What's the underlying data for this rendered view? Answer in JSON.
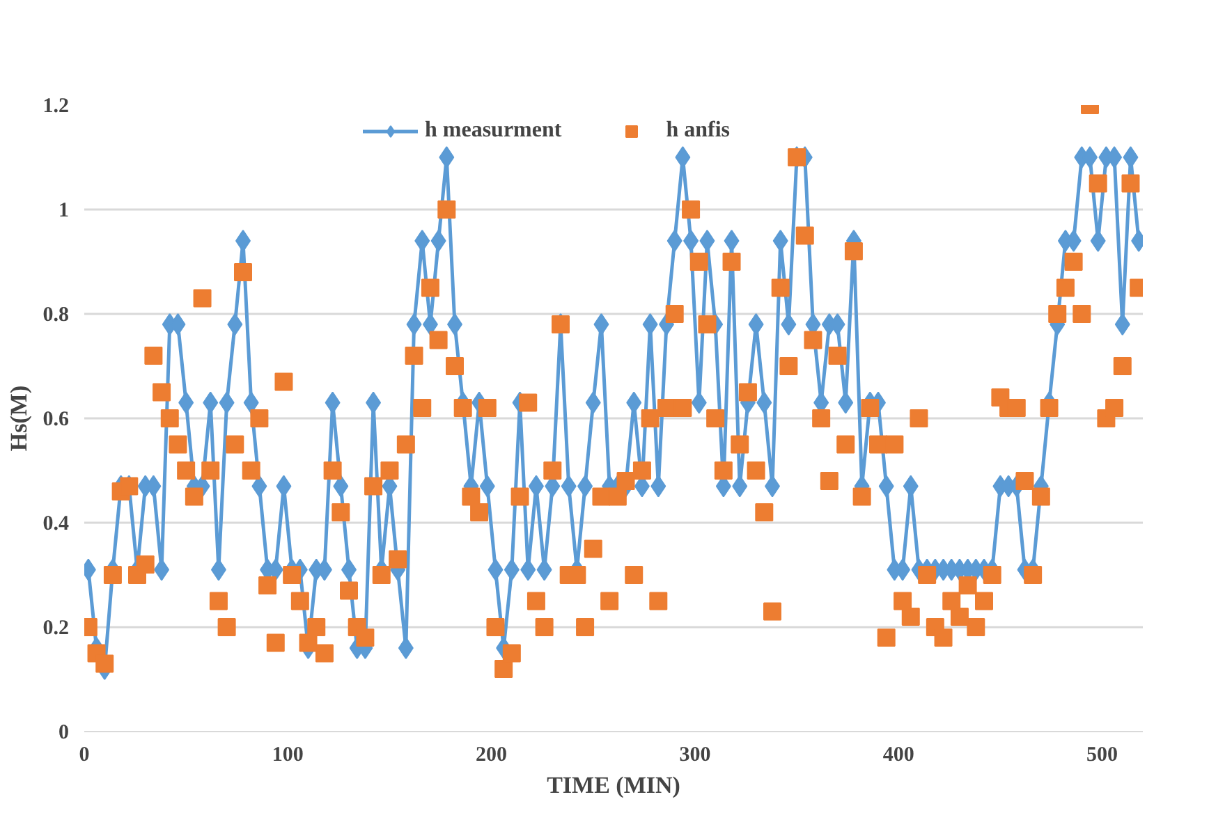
{
  "chart_data": {
    "type": "line",
    "xlabel": "TIME (MIN)",
    "ylabel": "Hs(M)",
    "x": [
      2,
      6,
      10,
      14,
      18,
      22,
      26,
      30,
      34,
      38,
      42,
      46,
      50,
      54,
      58,
      62,
      66,
      70,
      74,
      78,
      82,
      86,
      90,
      94,
      98,
      102,
      106,
      110,
      114,
      118,
      122,
      126,
      130,
      134,
      138,
      142,
      146,
      150,
      154,
      158,
      162,
      166,
      170,
      174,
      178,
      182,
      186,
      190,
      194,
      198,
      202,
      206,
      210,
      214,
      218,
      222,
      226,
      230,
      234,
      238,
      242,
      246,
      250,
      254,
      258,
      262,
      266,
      270,
      274,
      278,
      282,
      286,
      290,
      294,
      298,
      302,
      306,
      310,
      314,
      318,
      322,
      326,
      330,
      334,
      338,
      342,
      346,
      350,
      354,
      358,
      362,
      366,
      370,
      374,
      378,
      382,
      386,
      390,
      394,
      398,
      402,
      406,
      410,
      414,
      418,
      422,
      426,
      430,
      434,
      438,
      442,
      446,
      450,
      454,
      458,
      462,
      466,
      470,
      474,
      478,
      482,
      486,
      490,
      494,
      498,
      502,
      506,
      510,
      514,
      518
    ],
    "series": [
      {
        "name": "h measurment",
        "marker": "diamond",
        "color": "#5b9bd5",
        "values": [
          0.31,
          0.16,
          0.12,
          0.31,
          0.47,
          0.47,
          0.31,
          0.47,
          0.47,
          0.31,
          0.78,
          0.78,
          0.63,
          0.47,
          0.47,
          0.63,
          0.31,
          0.63,
          0.78,
          0.94,
          0.63,
          0.47,
          0.31,
          0.31,
          0.47,
          0.31,
          0.31,
          0.16,
          0.31,
          0.31,
          0.63,
          0.47,
          0.31,
          0.16,
          0.16,
          0.63,
          0.31,
          0.47,
          0.31,
          0.16,
          0.78,
          0.94,
          0.78,
          0.94,
          1.1,
          0.78,
          0.63,
          0.47,
          0.63,
          0.47,
          0.31,
          0.16,
          0.31,
          0.63,
          0.31,
          0.47,
          0.31,
          0.47,
          0.78,
          0.47,
          0.31,
          0.47,
          0.63,
          0.78,
          0.47,
          0.47,
          0.47,
          0.63,
          0.47,
          0.78,
          0.47,
          0.78,
          0.94,
          1.1,
          0.94,
          0.63,
          0.94,
          0.78,
          0.47,
          0.94,
          0.47,
          0.63,
          0.78,
          0.63,
          0.47,
          0.94,
          0.78,
          1.1,
          1.1,
          0.78,
          0.63,
          0.78,
          0.78,
          0.63,
          0.94,
          0.47,
          0.63,
          0.63,
          0.47,
          0.31,
          0.31,
          0.47,
          0.31,
          0.31,
          0.31,
          0.31,
          0.31,
          0.31,
          0.31,
          0.31,
          0.31,
          0.31,
          0.47,
          0.47,
          0.47,
          0.31,
          0.31,
          0.47,
          0.63,
          0.78,
          0.94,
          0.94,
          1.1,
          1.1,
          0.94,
          1.1,
          1.1,
          0.78,
          1.1,
          0.94
        ]
      },
      {
        "name": "h anfis",
        "type": "scatter",
        "marker": "square",
        "color": "#ed7d31",
        "values": [
          0.2,
          0.15,
          0.13,
          0.3,
          0.46,
          0.47,
          0.3,
          0.32,
          0.72,
          0.65,
          0.6,
          0.55,
          0.5,
          0.45,
          0.83,
          0.5,
          0.25,
          0.2,
          0.55,
          0.88,
          0.5,
          0.6,
          0.28,
          0.17,
          0.67,
          0.3,
          0.25,
          0.17,
          0.2,
          0.15,
          0.5,
          0.42,
          0.27,
          0.2,
          0.18,
          0.47,
          0.3,
          0.5,
          0.33,
          0.55,
          0.72,
          0.62,
          0.85,
          0.75,
          1.0,
          0.7,
          0.62,
          0.45,
          0.42,
          0.62,
          0.2,
          0.12,
          0.15,
          0.45,
          0.63,
          0.25,
          0.2,
          0.5,
          0.78,
          0.3,
          0.3,
          0.2,
          0.35,
          0.45,
          0.25,
          0.45,
          0.48,
          0.3,
          0.5,
          0.6,
          0.25,
          0.62,
          0.8,
          0.62,
          1.0,
          0.9,
          0.78,
          0.6,
          0.5,
          0.9,
          0.55,
          0.65,
          0.5,
          0.42,
          0.23,
          0.85,
          0.7,
          1.1,
          0.95,
          0.75,
          0.6,
          0.48,
          0.72,
          0.55,
          0.92,
          0.45,
          0.62,
          0.55,
          0.18,
          0.55,
          0.25,
          0.22,
          0.6,
          0.3,
          0.2,
          0.18,
          0.25,
          0.22,
          0.28,
          0.2,
          0.25,
          0.3,
          0.64,
          0.62,
          0.62,
          0.48,
          0.3,
          0.45,
          0.62,
          0.8,
          0.85,
          0.9,
          0.8,
          1.2,
          1.05,
          0.6,
          0.62,
          0.7,
          1.05,
          0.85
        ]
      }
    ],
    "xlim": [
      0,
      520
    ],
    "xticks": [
      0,
      100,
      200,
      300,
      400,
      500
    ],
    "ylim": [
      0,
      1.2
    ],
    "yticks": [
      0,
      0.2,
      0.4,
      0.6,
      0.8,
      1,
      1.2
    ],
    "grid": "y",
    "legend": "top"
  }
}
